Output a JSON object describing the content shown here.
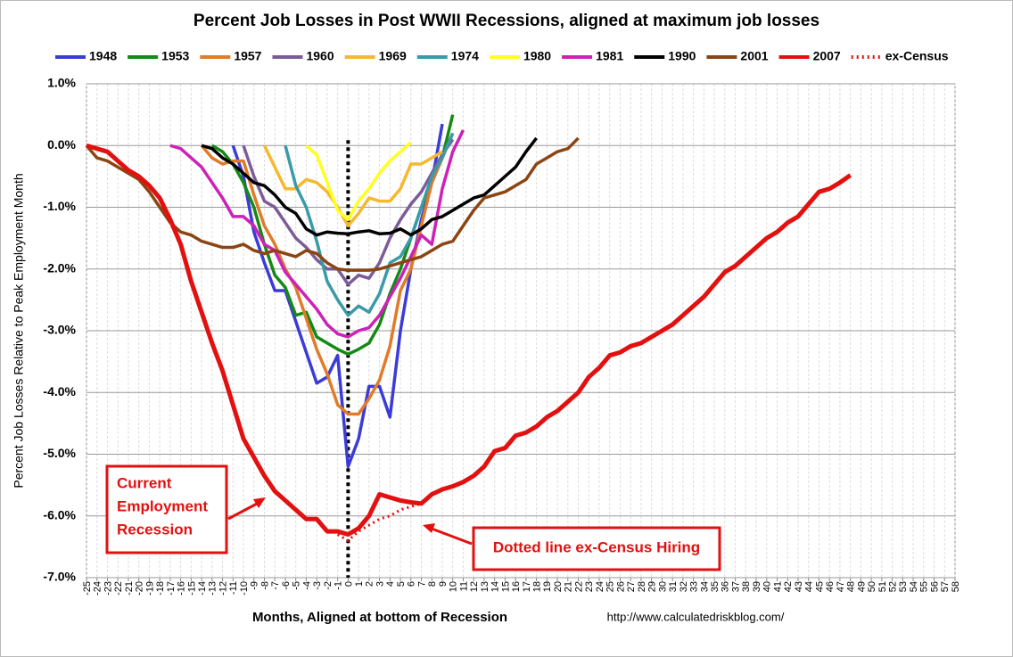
{
  "chart_data": {
    "type": "line",
    "title": "Percent Job Losses in Post WWII Recessions, aligned at maximum job losses",
    "x_label": "Months, Aligned at bottom of Recession",
    "y_label": "Percent Job Losses Relative to Peak Employment Month",
    "source": "http://www.calculatedriskblog.com/",
    "annotations": [
      [
        "Current",
        "Employment",
        "Recession"
      ],
      [
        "Dotted line ex-Census Hiring"
      ]
    ],
    "grid": true,
    "reference_line_x": 0,
    "xlim": [
      -25,
      58
    ],
    "ylim": [
      -7,
      1
    ],
    "xticks": [
      -25,
      -24,
      -23,
      -22,
      -21,
      -20,
      -19,
      -18,
      -17,
      -16,
      -15,
      -14,
      -13,
      -12,
      -11,
      -10,
      -9,
      -8,
      -7,
      -6,
      -5,
      -4,
      -3,
      -2,
      -1,
      0,
      1,
      2,
      3,
      4,
      5,
      6,
      7,
      8,
      9,
      10,
      11,
      12,
      13,
      14,
      15,
      16,
      17,
      18,
      19,
      20,
      21,
      22,
      23,
      24,
      25,
      26,
      27,
      28,
      29,
      30,
      31,
      32,
      33,
      34,
      35,
      36,
      37,
      38,
      39,
      40,
      41,
      42,
      43,
      44,
      45,
      46,
      47,
      48,
      49,
      50,
      51,
      52,
      53,
      54,
      55,
      56,
      57,
      58
    ],
    "yticks": [
      {
        "value": 1,
        "label": "1.0%"
      },
      {
        "value": 0,
        "label": "0.0%"
      },
      {
        "value": -1,
        "label": "-1.0%"
      },
      {
        "value": -2,
        "label": "-2.0%"
      },
      {
        "value": -3,
        "label": "-3.0%"
      },
      {
        "value": -4,
        "label": "-4.0%"
      },
      {
        "value": -5,
        "label": "-5.0%"
      },
      {
        "value": -6,
        "label": "-6.0%"
      },
      {
        "value": -7,
        "label": "-7.0%"
      }
    ],
    "series": [
      {
        "name": "1948",
        "color": "#3b3bd8",
        "x": [
          -11,
          -10,
          -9,
          -8,
          -7,
          -6,
          -5,
          -4,
          -3,
          -2,
          -1,
          0,
          1,
          2,
          3,
          4,
          5,
          6,
          7,
          8,
          9
        ],
        "values": [
          0,
          -0.5,
          -1.4,
          -1.9,
          -2.35,
          -2.35,
          -2.85,
          -3.35,
          -3.85,
          -3.75,
          -3.4,
          -5.2,
          -4.75,
          -3.9,
          -3.9,
          -4.4,
          -3.0,
          -2.0,
          -1.2,
          -0.6,
          0.35
        ]
      },
      {
        "name": "1953",
        "color": "#138a13",
        "x": [
          -13,
          -12,
          -11,
          -10,
          -9,
          -8,
          -7,
          -6,
          -5,
          -4,
          -3,
          -2,
          -1,
          0,
          1,
          2,
          3,
          4,
          5,
          6,
          7,
          8,
          9,
          10
        ],
        "values": [
          0,
          -0.1,
          -0.3,
          -0.6,
          -1.0,
          -1.6,
          -2.1,
          -2.3,
          -2.75,
          -2.7,
          -3.1,
          -3.2,
          -3.3,
          -3.38,
          -3.3,
          -3.2,
          -2.9,
          -2.4,
          -2.0,
          -1.5,
          -1.0,
          -0.6,
          -0.2,
          0.5
        ]
      },
      {
        "name": "1957",
        "color": "#e07b2a",
        "x": [
          -14,
          -13,
          -12,
          -11,
          -10,
          -9,
          -8,
          -7,
          -6,
          -5,
          -4,
          -3,
          -2,
          -1,
          0,
          1,
          2,
          3,
          4,
          5,
          6,
          7,
          8,
          9,
          10
        ],
        "values": [
          0,
          -0.2,
          -0.3,
          -0.25,
          -0.25,
          -0.8,
          -1.3,
          -1.6,
          -2.0,
          -2.3,
          -2.8,
          -3.3,
          -3.7,
          -4.2,
          -4.35,
          -4.35,
          -4.1,
          -3.8,
          -3.25,
          -2.35,
          -2.0,
          -1.3,
          -0.6,
          -0.2,
          0.2
        ]
      },
      {
        "name": "1960",
        "color": "#7b5c99",
        "x": [
          -10,
          -9,
          -8,
          -7,
          -6,
          -5,
          -4,
          -3,
          -2,
          -1,
          0,
          1,
          2,
          3,
          4,
          5,
          6,
          7,
          8,
          9,
          10
        ],
        "values": [
          0,
          -0.5,
          -0.9,
          -1.0,
          -1.25,
          -1.5,
          -1.65,
          -1.85,
          -2.0,
          -2.0,
          -2.25,
          -2.1,
          -2.15,
          -1.9,
          -1.5,
          -1.2,
          -0.95,
          -0.75,
          -0.45,
          -0.15,
          0.1
        ]
      },
      {
        "name": "1969",
        "color": "#f5b82e",
        "x": [
          -8,
          -7,
          -6,
          -5,
          -4,
          -3,
          -2,
          -1,
          0,
          1,
          2,
          3,
          4,
          5,
          6,
          7,
          8,
          9
        ],
        "values": [
          0,
          -0.35,
          -0.7,
          -0.7,
          -0.55,
          -0.6,
          -0.75,
          -1.0,
          -1.3,
          -1.1,
          -0.85,
          -0.9,
          -0.9,
          -0.7,
          -0.3,
          -0.3,
          -0.2,
          -0.1
        ]
      },
      {
        "name": "1974",
        "color": "#3a9aa8",
        "x": [
          -6,
          -5,
          -4,
          -3,
          -2,
          -1,
          0,
          1,
          2,
          3,
          4,
          5,
          6,
          7,
          8,
          9,
          10
        ],
        "values": [
          0,
          -0.65,
          -1.0,
          -1.55,
          -2.2,
          -2.5,
          -2.75,
          -2.6,
          -2.7,
          -2.4,
          -1.9,
          -1.8,
          -1.5,
          -1.0,
          -0.5,
          -0.2,
          0.2
        ]
      },
      {
        "name": "1980",
        "color": "#ffff22",
        "x": [
          -4,
          -3,
          -2,
          -1,
          0,
          1,
          2,
          3,
          4,
          5,
          6
        ],
        "values": [
          0,
          -0.15,
          -0.6,
          -1.05,
          -1.2,
          -0.9,
          -0.7,
          -0.45,
          -0.25,
          -0.1,
          0.05
        ]
      },
      {
        "name": "1981",
        "color": "#cc22b8",
        "x": [
          -17,
          -16,
          -15,
          -14,
          -13,
          -12,
          -11,
          -10,
          -9,
          -8,
          -7,
          -6,
          -5,
          -4,
          -3,
          -2,
          -1,
          0,
          1,
          2,
          3,
          4,
          5,
          6,
          7,
          8,
          9,
          10,
          11
        ],
        "values": [
          0,
          -0.05,
          -0.2,
          -0.35,
          -0.6,
          -0.85,
          -1.15,
          -1.15,
          -1.3,
          -1.6,
          -1.7,
          -2.05,
          -2.25,
          -2.45,
          -2.65,
          -2.9,
          -3.05,
          -3.1,
          -3.0,
          -2.95,
          -2.75,
          -2.45,
          -2.15,
          -1.8,
          -1.45,
          -1.6,
          -0.7,
          -0.1,
          0.25
        ]
      },
      {
        "name": "1990",
        "color": "#000000",
        "x": [
          -14,
          -13,
          -12,
          -11,
          -10,
          -9,
          -8,
          -7,
          -6,
          -5,
          -4,
          -3,
          -2,
          -1,
          0,
          1,
          2,
          3,
          4,
          5,
          6,
          7,
          8,
          9,
          10,
          11,
          12,
          13,
          14,
          15,
          16,
          17,
          18
        ],
        "values": [
          0,
          -0.05,
          -0.2,
          -0.3,
          -0.45,
          -0.6,
          -0.65,
          -0.8,
          -1.0,
          -1.1,
          -1.35,
          -1.45,
          -1.4,
          -1.42,
          -1.43,
          -1.4,
          -1.38,
          -1.43,
          -1.42,
          -1.35,
          -1.45,
          -1.35,
          -1.2,
          -1.15,
          -1.05,
          -0.95,
          -0.85,
          -0.8,
          -0.65,
          -0.5,
          -0.35,
          -0.1,
          0.12
        ]
      },
      {
        "name": "2001",
        "color": "#8b4513",
        "x": [
          -25,
          -24,
          -23,
          -22,
          -21,
          -20,
          -19,
          -18,
          -17,
          -16,
          -15,
          -14,
          -13,
          -12,
          -11,
          -10,
          -9,
          -8,
          -7,
          -6,
          -5,
          -4,
          -3,
          -2,
          -1,
          0,
          1,
          2,
          3,
          4,
          5,
          6,
          7,
          8,
          9,
          10,
          11,
          12,
          13,
          14,
          15,
          16,
          17,
          18,
          19,
          20,
          21,
          22
        ],
        "values": [
          0,
          -0.2,
          -0.25,
          -0.35,
          -0.45,
          -0.55,
          -0.75,
          -1.0,
          -1.25,
          -1.4,
          -1.45,
          -1.55,
          -1.6,
          -1.65,
          -1.65,
          -1.6,
          -1.7,
          -1.75,
          -1.7,
          -1.75,
          -1.8,
          -1.7,
          -1.75,
          -1.9,
          -2.0,
          -2.02,
          -2.02,
          -2.02,
          -2.0,
          -1.95,
          -1.9,
          -1.85,
          -1.8,
          -1.7,
          -1.6,
          -1.55,
          -1.3,
          -1.05,
          -0.85,
          -0.8,
          -0.75,
          -0.65,
          -0.55,
          -0.3,
          -0.2,
          -0.1,
          -0.05,
          0.12
        ]
      },
      {
        "name": "2007",
        "color": "#e31010",
        "width": 5,
        "x": [
          -25,
          -24,
          -23,
          -22,
          -21,
          -20,
          -19,
          -18,
          -17,
          -16,
          -15,
          -14,
          -13,
          -12,
          -11,
          -10,
          -9,
          -8,
          -7,
          -6,
          -5,
          -4,
          -3,
          -2,
          -1,
          0,
          1,
          2,
          3,
          4,
          5,
          6,
          7,
          8,
          9,
          10,
          11,
          12,
          13,
          14,
          15,
          16,
          17,
          18,
          19,
          20,
          21,
          22,
          23,
          24,
          25,
          26,
          27,
          28,
          29,
          30,
          31,
          32,
          33,
          34,
          35,
          36,
          37,
          38,
          39,
          40,
          41,
          42,
          43,
          44,
          45,
          46,
          47,
          48
        ],
        "values": [
          0,
          -0.05,
          -0.1,
          -0.25,
          -0.4,
          -0.5,
          -0.65,
          -0.85,
          -1.2,
          -1.6,
          -2.2,
          -2.7,
          -3.2,
          -3.65,
          -4.2,
          -4.75,
          -5.05,
          -5.35,
          -5.6,
          -5.75,
          -5.9,
          -6.05,
          -6.05,
          -6.25,
          -6.25,
          -6.3,
          -6.2,
          -6.0,
          -5.65,
          -5.7,
          -5.75,
          -5.78,
          -5.8,
          -5.65,
          -5.57,
          -5.52,
          -5.45,
          -5.35,
          -5.2,
          -4.95,
          -4.9,
          -4.7,
          -4.65,
          -4.55,
          -4.4,
          -4.3,
          -4.15,
          -4.0,
          -3.75,
          -3.6,
          -3.4,
          -3.35,
          -3.25,
          -3.2,
          -3.1,
          -3.0,
          -2.9,
          -2.75,
          -2.6,
          -2.45,
          -2.25,
          -2.05,
          -1.95,
          -1.8,
          -1.65,
          -1.5,
          -1.4,
          -1.25,
          -1.15,
          -0.95,
          -0.75,
          -0.7,
          -0.6,
          -0.48
        ]
      },
      {
        "name": "ex-Census",
        "color": "#e31010",
        "dash": "dotted",
        "x": [
          -1,
          0,
          1,
          2,
          3,
          4,
          5,
          6,
          7
        ],
        "values": [
          -6.3,
          -6.4,
          -6.25,
          -6.15,
          -6.05,
          -6.0,
          -5.9,
          -5.85,
          -5.8
        ]
      }
    ]
  }
}
